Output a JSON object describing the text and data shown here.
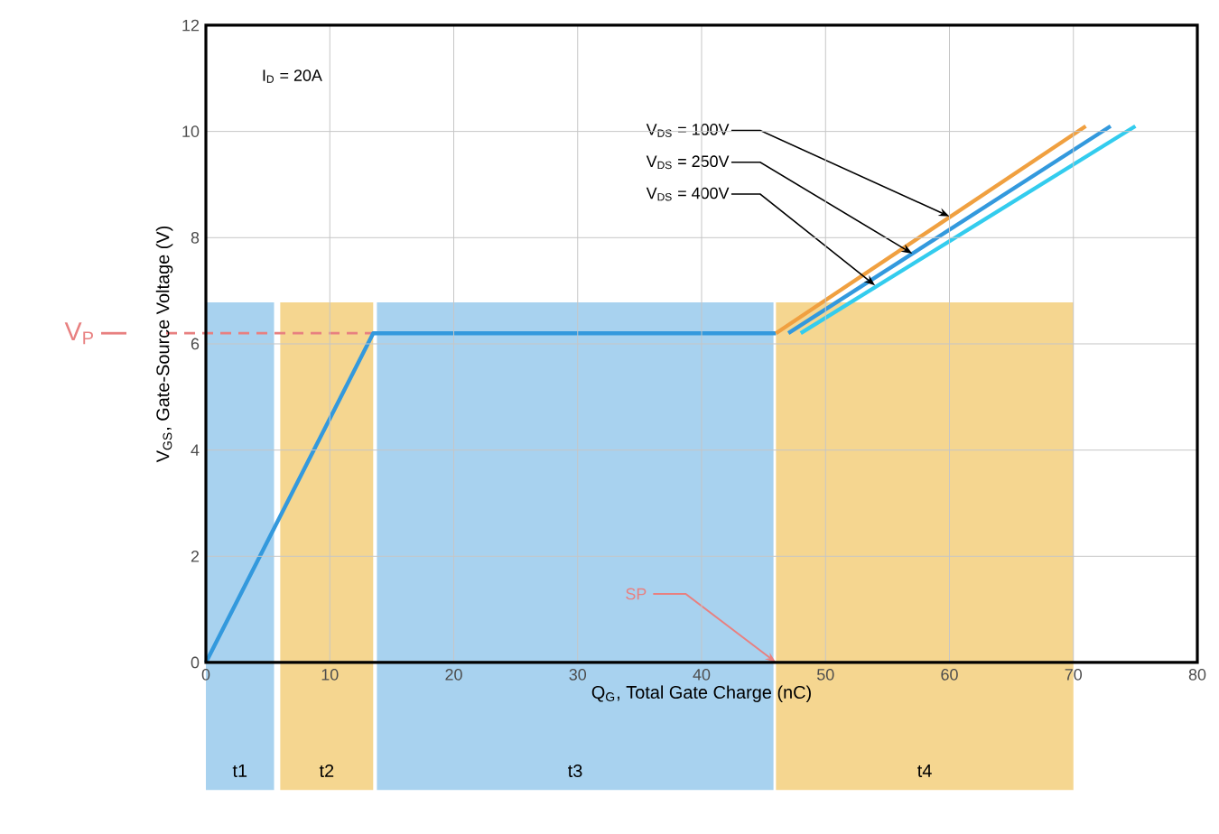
{
  "chart_data": {
    "type": "line",
    "xlabel": "Q$_{G}$, Total Gate Charge (nC)",
    "ylabel": "V$_{GS}$, Gate-Source Voltage (V)",
    "xlim": [
      0,
      80
    ],
    "ylim": [
      0,
      12
    ],
    "xticks": [
      0,
      10,
      20,
      30,
      40,
      50,
      60,
      70,
      80
    ],
    "yticks": [
      0,
      2,
      4,
      6,
      8,
      10,
      12
    ],
    "grid": true,
    "series": [
      {
        "color": "#3399dd",
        "x": [
          0,
          13.5,
          46
        ],
        "values": [
          0,
          6.2,
          6.2
        ]
      },
      {
        "color": "#f0a040",
        "x": [
          46,
          71
        ],
        "values": [
          6.2,
          10.1
        ]
      },
      {
        "color": "#3399dd",
        "x": [
          47,
          73
        ],
        "values": [
          6.2,
          10.1
        ]
      },
      {
        "color": "#33ccee",
        "x": [
          48,
          75
        ],
        "values": [
          6.2,
          10.1
        ]
      }
    ],
    "bands": [
      {
        "axis": "x",
        "from": 0,
        "to": 5.5,
        "label": "t1",
        "color": "#a8d2ef"
      },
      {
        "axis": "x",
        "from": 6,
        "to": 13.5,
        "label": "t2",
        "color": "#f5d690"
      },
      {
        "axis": "x",
        "from": 13.8,
        "to": 45.8,
        "label": "t3",
        "color": "#a8d2ef"
      },
      {
        "axis": "x",
        "from": 46,
        "to": 70,
        "label": "t4",
        "color": "#f5d690"
      }
    ],
    "ref_lines": [
      {
        "axis": "y",
        "value": 6.2,
        "label": "V$_{P}$",
        "color": "#e88080",
        "line_style": "dashed"
      }
    ],
    "annotations": [
      "I$_{D}$ = 20A",
      {
        "text": "V$_{DS}$ = 100V",
        "x": 60,
        "y": 8.4
      },
      {
        "text": "V$_{DS}$ = 250V",
        "x": 57,
        "y": 7.7
      },
      {
        "text": "V$_{DS}$ = 400V",
        "x": 54,
        "y": 7.1
      },
      {
        "text": "SP",
        "x": 46,
        "y": 0
      }
    ]
  }
}
